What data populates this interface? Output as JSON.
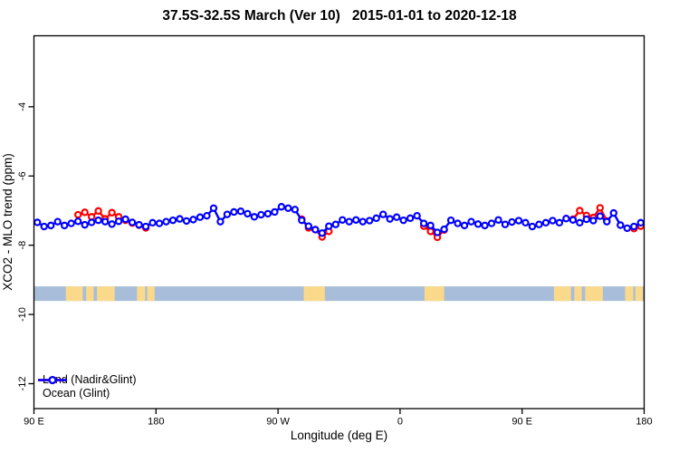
{
  "title": {
    "range_label": "37.5S-32.5S March (Ver 10)",
    "date_range": "2015-01-01 to 2020-12-18"
  },
  "colors": {
    "land": "#ff0000",
    "ocean": "#0000ff",
    "map_ocean": "#a8bdd9",
    "map_land": "#fbd98b",
    "axis": "#000000"
  },
  "legend": {
    "items": [
      {
        "label": "Land (Nadir&Glint)",
        "color": "#ff0000"
      },
      {
        "label": "Ocean (Glint)",
        "color": "#0000ff"
      }
    ]
  },
  "chart_data": {
    "type": "line",
    "title": "37.5S-32.5S March (Ver 10)  2015-01-01 to 2020-12-18",
    "xlabel": "Longitude (deg E)",
    "ylabel": "XCO2 - MLO trend (ppm)",
    "xlim": [
      90,
      540
    ],
    "ylim": [
      -12.72,
      -1.95
    ],
    "grid": false,
    "legend_position": "bottom-left",
    "x_ticks": [
      {
        "value": 90,
        "label": "90 E"
      },
      {
        "value": 180,
        "label": "180"
      },
      {
        "value": 270,
        "label": "90 W"
      },
      {
        "value": 360,
        "label": "0"
      },
      {
        "value": 450,
        "label": "90 E"
      },
      {
        "value": 540,
        "label": "180"
      }
    ],
    "y_ticks": [
      {
        "value": -4,
        "label": "-4"
      },
      {
        "value": -6,
        "label": "-6"
      },
      {
        "value": -8,
        "label": "-8"
      },
      {
        "value": -10,
        "label": "-10"
      },
      {
        "value": -12,
        "label": "-12"
      }
    ],
    "series": [
      {
        "name": "Land (Nadir&Glint)",
        "color": "#ff0000",
        "marker": "open-circle",
        "segments": [
          [
            [
              122.5,
              -7.12
            ],
            [
              127.5,
              -7.05
            ],
            [
              132.5,
              -7.18
            ],
            [
              137.5,
              -7.01
            ],
            [
              142.5,
              -7.24
            ],
            [
              147.5,
              -7.06
            ],
            [
              152.5,
              -7.18
            ],
            [
              157.5,
              -7.28
            ],
            [
              162.5,
              -7.36
            ],
            [
              167.5,
              -7.42
            ],
            [
              172.5,
              -7.5
            ]
          ],
          [
            [
              287.5,
              -7.25
            ],
            [
              292.5,
              -7.5
            ],
            [
              297.5,
              -7.55
            ],
            [
              302.5,
              -7.76
            ],
            [
              307.5,
              -7.6
            ]
          ],
          [
            [
              377.5,
              -7.45
            ],
            [
              382.5,
              -7.6
            ],
            [
              387.5,
              -7.77
            ],
            [
              392.5,
              -7.56
            ]
          ],
          [
            [
              487.5,
              -7.25
            ],
            [
              492.5,
              -7.0
            ],
            [
              497.5,
              -7.14
            ],
            [
              502.5,
              -7.2
            ],
            [
              507.5,
              -6.92
            ],
            [
              512.5,
              -7.3
            ]
          ],
          [
            [
              532.5,
              -7.52
            ],
            [
              537.5,
              -7.45
            ]
          ]
        ]
      },
      {
        "name": "Ocean (Glint)",
        "color": "#0000ff",
        "marker": "open-circle",
        "x": [
          92.5,
          97.5,
          102.5,
          107.5,
          112.5,
          117.5,
          122.5,
          127.5,
          132.5,
          137.5,
          142.5,
          147.5,
          152.5,
          157.5,
          162.5,
          167.5,
          172.5,
          177.5,
          182.5,
          187.5,
          192.5,
          197.5,
          202.5,
          207.5,
          212.5,
          217.5,
          222.5,
          227.5,
          232.5,
          237.5,
          242.5,
          247.5,
          252.5,
          257.5,
          262.5,
          267.5,
          272.5,
          277.5,
          282.5,
          287.5,
          292.5,
          297.5,
          302.5,
          307.5,
          312.5,
          317.5,
          322.5,
          327.5,
          332.5,
          337.5,
          342.5,
          347.5,
          352.5,
          357.5,
          362.5,
          367.5,
          372.5,
          377.5,
          382.5,
          387.5,
          392.5,
          397.5,
          402.5,
          407.5,
          412.5,
          417.5,
          422.5,
          427.5,
          432.5,
          437.5,
          442.5,
          447.5,
          452.5,
          457.5,
          462.5,
          467.5,
          472.5,
          477.5,
          482.5,
          487.5,
          492.5,
          497.5,
          502.5,
          507.5,
          512.5,
          517.5,
          522.5,
          527.5,
          532.5,
          537.5
        ],
        "values": [
          -7.34,
          -7.46,
          -7.43,
          -7.32,
          -7.43,
          -7.37,
          -7.31,
          -7.41,
          -7.34,
          -7.28,
          -7.32,
          -7.39,
          -7.31,
          -7.25,
          -7.34,
          -7.41,
          -7.46,
          -7.35,
          -7.37,
          -7.32,
          -7.28,
          -7.24,
          -7.3,
          -7.26,
          -7.19,
          -7.15,
          -6.93,
          -7.32,
          -7.11,
          -7.04,
          -7.02,
          -7.09,
          -7.18,
          -7.12,
          -7.09,
          -7.04,
          -6.89,
          -6.93,
          -6.97,
          -7.28,
          -7.45,
          -7.55,
          -7.65,
          -7.45,
          -7.4,
          -7.27,
          -7.32,
          -7.27,
          -7.32,
          -7.29,
          -7.22,
          -7.11,
          -7.24,
          -7.19,
          -7.28,
          -7.22,
          -7.15,
          -7.37,
          -7.43,
          -7.63,
          -7.54,
          -7.28,
          -7.37,
          -7.43,
          -7.32,
          -7.39,
          -7.43,
          -7.37,
          -7.27,
          -7.4,
          -7.33,
          -7.29,
          -7.35,
          -7.46,
          -7.4,
          -7.35,
          -7.29,
          -7.35,
          -7.23,
          -7.27,
          -7.35,
          -7.25,
          -7.29,
          -7.16,
          -7.32,
          -7.07,
          -7.42,
          -7.51,
          -7.46,
          -7.35
        ]
      }
    ],
    "map_band": {
      "y_top": -9.19,
      "y_bottom": -9.61,
      "ocean_color": "#a8bdd9",
      "land_color": "#fbd98b",
      "land_patches": [
        {
          "name": "australia-west",
          "from": 113.5,
          "to": 126
        },
        {
          "name": "australia-central",
          "from": 128.5,
          "to": 134
        },
        {
          "name": "australia-east",
          "from": 136.5,
          "to": 149.5
        },
        {
          "name": "new-zealand-south",
          "from": 166,
          "to": 172
        },
        {
          "name": "new-zealand-north",
          "from": 173.5,
          "to": 179
        },
        {
          "name": "south-america",
          "from": 289,
          "to": 304.5
        },
        {
          "name": "south-africa",
          "from": 378,
          "to": 392.5
        },
        {
          "name": "australia-west-2",
          "from": 473.5,
          "to": 486
        },
        {
          "name": "australia-central-2",
          "from": 488.5,
          "to": 494
        },
        {
          "name": "australia-east-2",
          "from": 496.5,
          "to": 509.5
        },
        {
          "name": "new-zealand-south-2",
          "from": 526,
          "to": 532
        },
        {
          "name": "new-zealand-north-2",
          "from": 533.5,
          "to": 539
        }
      ]
    }
  }
}
